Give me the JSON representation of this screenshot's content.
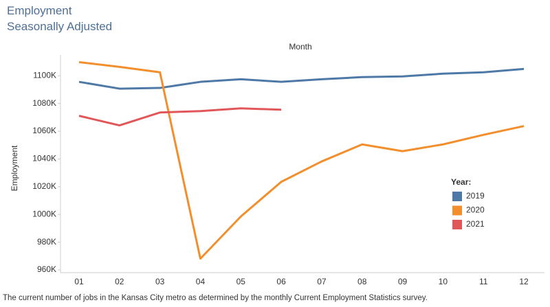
{
  "chart_data": {
    "type": "line",
    "title": "Employment",
    "subtitle": "Seasonally Adjusted",
    "x_label": "Month",
    "y_label": "Employment",
    "legend_title": "Year:",
    "legend_position": "right",
    "caption": "The current number of jobs in the Kansas City metro as determined by the monthly Current Employment Statistics survey.",
    "categories": [
      "01",
      "02",
      "03",
      "04",
      "05",
      "06",
      "07",
      "08",
      "09",
      "10",
      "11",
      "12"
    ],
    "series": [
      {
        "name": "2019",
        "color": "#4e79a7",
        "values": [
          1095.6,
          1090.7,
          1091.2,
          1095.6,
          1097.5,
          1095.6,
          1097.5,
          1099.0,
          1099.5,
          1101.5,
          1102.5,
          1104.9
        ]
      },
      {
        "name": "2020",
        "color": "#f28e2b",
        "values": [
          1109.8,
          1106.4,
          1102.5,
          968.1,
          998.5,
          1023.5,
          1038.2,
          1050.5,
          1045.6,
          1050.5,
          1057.4,
          1063.7
        ]
      },
      {
        "name": "2021",
        "color": "#e15759",
        "values": [
          1071.1,
          1064.2,
          1073.5,
          1074.5,
          1076.5,
          1075.5,
          null,
          null,
          null,
          null,
          null,
          null
        ]
      }
    ],
    "ylim": [
      958,
      1115
    ],
    "yticks": [
      {
        "value": 960,
        "label": "960K"
      },
      {
        "value": 980,
        "label": "980K"
      },
      {
        "value": 1000,
        "label": "1000K"
      },
      {
        "value": 1020,
        "label": "1020K"
      },
      {
        "value": 1040,
        "label": "1040K"
      },
      {
        "value": 1060,
        "label": "1060K"
      },
      {
        "value": 1080,
        "label": "1080K"
      },
      {
        "value": 1100,
        "label": "1100K"
      }
    ],
    "grid": false
  }
}
